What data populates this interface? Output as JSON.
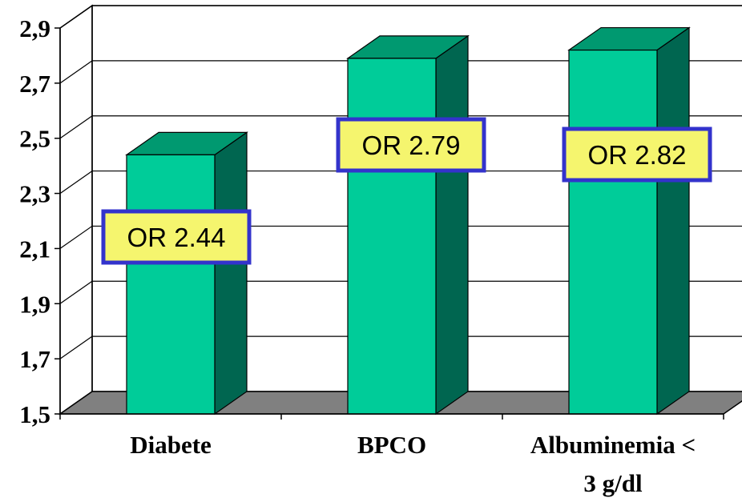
{
  "chart_data": {
    "type": "bar",
    "style": "3d-column",
    "categories": [
      "Diabete",
      "BPCO",
      "Albuminemia < 3 g/dl"
    ],
    "category_lines": [
      [
        "Diabete"
      ],
      [
        "BPCO"
      ],
      [
        "Albuminemia <",
        "3 g/dl"
      ]
    ],
    "values": [
      2.44,
      2.79,
      2.82
    ],
    "data_labels": [
      "OR 2.44",
      "OR 2.79",
      "OR 2.82"
    ],
    "ylim": [
      1.5,
      2.9
    ],
    "yticks": [
      1.5,
      1.7,
      1.9,
      2.1,
      2.3,
      2.5,
      2.7,
      2.9
    ],
    "ytick_labels": [
      "1,5",
      "1,7",
      "1,9",
      "2,1",
      "2,3",
      "2,5",
      "2,7",
      "2,9"
    ],
    "grid": true,
    "title": "",
    "xlabel": "",
    "ylabel": "",
    "colors": {
      "bar_front": "#00cc99",
      "bar_top": "#009970",
      "bar_side": "#006650",
      "floor": "#808080",
      "label_fill": "#f5f56e",
      "label_border": "#3333cc"
    }
  }
}
